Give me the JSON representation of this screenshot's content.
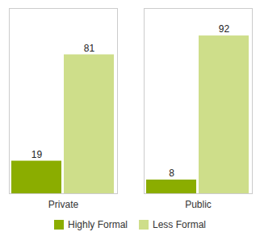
{
  "chart_data": {
    "type": "bar",
    "categories": [
      "Private",
      "Public"
    ],
    "series": [
      {
        "name": "Highly Formal",
        "color": "#8BAD00",
        "values": [
          19,
          8
        ]
      },
      {
        "name": "Less Formal",
        "color": "#CEDE8A",
        "values": [
          81,
          92
        ]
      }
    ],
    "ylim": [
      0,
      108
    ],
    "yticks": [],
    "data_labels": true,
    "tick_labels": "x",
    "legend": "bottom",
    "grid": false
  }
}
